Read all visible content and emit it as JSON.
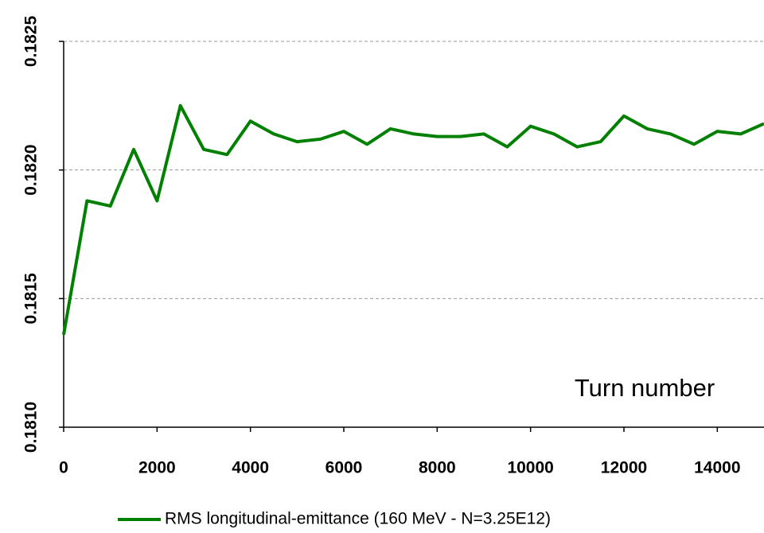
{
  "chart_data": {
    "type": "line",
    "annotation": "Turn number",
    "x": [
      0,
      500,
      1000,
      1500,
      2000,
      2500,
      3000,
      3500,
      4000,
      4500,
      5000,
      5500,
      6000,
      6500,
      7000,
      7500,
      8000,
      8500,
      9000,
      9500,
      10000,
      10500,
      11000,
      11500,
      12000,
      12500,
      13000,
      13500,
      14000,
      14500,
      15000
    ],
    "series": [
      {
        "name": "RMS longitudinal-emittance (160 MeV - N=3.25E12)",
        "color": "#008000",
        "values": [
          0.18136,
          0.18188,
          0.18186,
          0.18208,
          0.18188,
          0.18225,
          0.18208,
          0.18206,
          0.18219,
          0.18214,
          0.18211,
          0.18212,
          0.18215,
          0.1821,
          0.18216,
          0.18214,
          0.18213,
          0.18213,
          0.18214,
          0.18209,
          0.18217,
          0.18214,
          0.18209,
          0.18211,
          0.18221,
          0.18216,
          0.18214,
          0.1821,
          0.18215,
          0.18214,
          0.18218
        ]
      }
    ],
    "xlim": [
      0,
      15000
    ],
    "xticks": [
      0,
      2000,
      4000,
      6000,
      8000,
      10000,
      12000,
      14000
    ],
    "ylim": [
      0.181,
      0.1825
    ],
    "yticks": [
      {
        "value": 0.181,
        "label": "0.1810"
      },
      0.1815,
      {
        "value": 0.182,
        "label": "0.1820"
      },
      0.1825
    ],
    "grid": true,
    "legend": "bottom"
  }
}
